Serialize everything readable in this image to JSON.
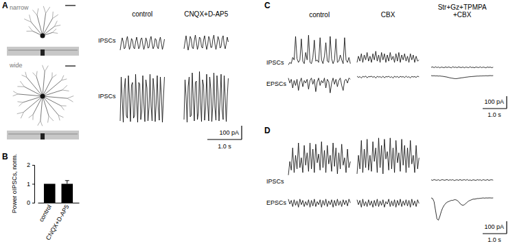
{
  "chart_data": [
    {
      "type": "line",
      "title": "A",
      "color": "#000000",
      "columns": [
        [
          "control"
        ],
        [
          "CNQX+D-AP5"
        ]
      ],
      "x": [
        0,
        0.03,
        0.06,
        0.09,
        0.12,
        0.15,
        0.18,
        0.21,
        0.24,
        0.27,
        0.3,
        0.33,
        0.36,
        0.39,
        0.42,
        0.45,
        0.48,
        0.51,
        0.54,
        0.57,
        0.6,
        0.63,
        0.66,
        0.69,
        0.72,
        0.75,
        0.78,
        0.81,
        0.84,
        0.87,
        0.9,
        0.93,
        0.96,
        0.99,
        1.02,
        1.05,
        1.08,
        1.11,
        1.14,
        1.17,
        1.2,
        1.23,
        1.26,
        1.29
      ],
      "rows": [
        {
          "cell": "narrow",
          "label": "IPSCs",
          "traces": [
            {
              "values": [
                10,
                60,
                100,
                70,
                20,
                30,
                80,
                110,
                60,
                15,
                40,
                95,
                80,
                30,
                20,
                70,
                105,
                65,
                20,
                35,
                90,
                100,
                50,
                15,
                45,
                100,
                75,
                25,
                30,
                85,
                110,
                60,
                20,
                40,
                95,
                85,
                35,
                20,
                75,
                105,
                60,
                15,
                45,
                90
              ]
            },
            {
              "values": [
                20,
                70,
                115,
                60,
                10,
                50,
                110,
                90,
                30,
                20,
                80,
                120,
                70,
                15,
                45,
                105,
                95,
                35,
                25,
                85,
                115,
                60,
                15,
                50,
                110,
                90,
                30,
                30,
                90,
                120,
                55,
                15,
                55,
                110,
                85,
                25,
                35,
                95,
                115,
                50,
                20,
                60,
                105,
                70
              ]
            }
          ]
        },
        {
          "cell": "wide",
          "label": "IPSCs",
          "traces": [
            {
              "values": [
                20,
                340,
                180,
                10,
                250,
                330,
                60,
                40,
                350,
                200,
                15,
                280,
                300,
                40,
                60,
                360,
                170,
                10,
                300,
                290,
                30,
                90,
                350,
                150,
                15,
                320,
                260,
                20,
                120,
                360,
                130,
                20,
                330,
                240,
                15,
                150,
                350,
                110,
                25,
                340,
                210,
                10,
                180,
                340
              ]
            },
            {
              "values": [
                30,
                320,
                200,
                10,
                270,
                340,
                50,
                60,
                370,
                180,
                20,
                300,
                310,
                30,
                80,
                380,
                160,
                15,
                320,
                280,
                25,
                110,
                360,
                140,
                20,
                340,
                250,
                15,
                140,
                370,
                120,
                25,
                350,
                230,
                20,
                170,
                360,
                100,
                30,
                350,
                190,
                15,
                200,
                330
              ]
            }
          ]
        }
      ],
      "scale_bar": {
        "x": 1.0,
        "x_label": "1.0 s",
        "y": 100,
        "y_label": "100 pA"
      }
    },
    {
      "type": "bar",
      "title": "B",
      "color": "#000000",
      "categories": [
        "control",
        "CNQX+D-AP5"
      ],
      "values": [
        1,
        1.0
      ],
      "errors": [
        null,
        0.17
      ],
      "y_label": "Power oIPSCs, norm.",
      "ylim": [
        0,
        2
      ],
      "yticks": [
        0,
        1,
        2
      ]
    },
    {
      "type": "line",
      "title": "C",
      "color": "#000000",
      "columns": [
        [
          "control"
        ],
        [
          "CBX"
        ],
        [
          "Str+Gz+TPMPA",
          "+CBX"
        ]
      ],
      "x": [
        0,
        0.06,
        0.12,
        0.18,
        0.24,
        0.3,
        0.36,
        0.42,
        0.48,
        0.54,
        0.6,
        0.66,
        0.72,
        0.78,
        0.84,
        0.9,
        0.96,
        1.02,
        1.08,
        1.14,
        1.2,
        1.26,
        1.32,
        1.38,
        1.44,
        1.5,
        1.56,
        1.62,
        1.68,
        1.74,
        1.8,
        1.86,
        1.92,
        1.98,
        2.04,
        2.1,
        2.16,
        2.22,
        2.28,
        2.34,
        2.4,
        2.46,
        2.52,
        2.58
      ],
      "rows": [
        {
          "label": "IPSCs",
          "traces": [
            {
              "values": [
                20,
                40,
                30,
                80,
                60,
                250,
                70,
                40,
                60,
                230,
                50,
                30,
                120,
                60,
                260,
                40,
                30,
                80,
                220,
                50,
                60,
                40,
                240,
                60,
                30,
                90,
                200,
                50,
                40,
                250,
                70,
                30,
                60,
                230,
                40,
                50,
                100,
                60,
                30,
                240,
                60,
                40,
                80,
                30
              ]
            },
            {
              "values": [
                40,
                90,
                50,
                110,
                40,
                100,
                60,
                120,
                50,
                90,
                40,
                110,
                60,
                130,
                50,
                100,
                40,
                120,
                60,
                110,
                40,
                100,
                50,
                120,
                60,
                90,
                40,
                110,
                50,
                120,
                40,
                100,
                60,
                110,
                50,
                90,
                40,
                110,
                60,
                100,
                40,
                90,
                50,
                60
              ]
            },
            {
              "values": [
                0,
                4,
                -3,
                5,
                -2,
                3,
                -4,
                2,
                0,
                -3,
                4,
                -2,
                3,
                0,
                -4,
                5,
                -1,
                2,
                -3,
                4,
                0,
                -2,
                3,
                -4,
                2,
                0,
                -3,
                5,
                -2,
                1,
                -4,
                3,
                0,
                -2,
                4,
                -3,
                2,
                0,
                -4,
                3,
                -1,
                2,
                -3,
                1
              ]
            }
          ]
        },
        {
          "label": "EPSCs",
          "traces": [
            {
              "values": [
                -20,
                -60,
                -30,
                -100,
                -40,
                -80,
                -30,
                -120,
                -50,
                -20,
                -90,
                -40,
                -60,
                -30,
                -110,
                -40,
                -20,
                -70,
                -30,
                -130,
                -50,
                -20,
                -80,
                -40,
                -60,
                -20,
                -100,
                -30,
                -50,
                -140,
                -60,
                -20,
                -70,
                -30,
                -90,
                -40,
                -20,
                -80,
                -120,
                -40,
                -30,
                -60,
                -20,
                -30
              ]
            },
            {
              "values": [
                -5,
                -15,
                -8,
                -20,
                -6,
                -12,
                -4,
                -18,
                -8,
                -10,
                -5,
                -14,
                -7,
                -20,
                -6,
                -12,
                -9,
                -16,
                -5,
                -18,
                -8,
                -11,
                -6,
                -15,
                -9,
                -20,
                -5,
                -13,
                -7,
                -17,
                -6,
                -12,
                -8,
                -16,
                -5,
                -14,
                -9,
                -19,
                -6,
                -12,
                -8,
                -15,
                -5,
                -10
              ]
            },
            {
              "values": [
                0,
                -2,
                -1,
                -3,
                -2,
                -4,
                -3,
                -5,
                -6,
                -8,
                -10,
                -12,
                -15,
                -18,
                -20,
                -22,
                -24,
                -25,
                -24,
                -22,
                -20,
                -18,
                -17,
                -15,
                -13,
                -12,
                -10,
                -9,
                -8,
                -7,
                -6,
                -5,
                -4,
                -4,
                -3,
                -3,
                -2,
                -2,
                -1,
                -2,
                -1,
                0,
                -1,
                0
              ]
            }
          ]
        }
      ],
      "scale_bar": {
        "x": 1.0,
        "x_label": "1.0 s",
        "y": 100,
        "y_label": "100 pA"
      }
    },
    {
      "type": "line",
      "title": "D",
      "color": "#000000",
      "x": [
        0,
        0.06,
        0.12,
        0.18,
        0.24,
        0.3,
        0.36,
        0.42,
        0.48,
        0.54,
        0.6,
        0.66,
        0.72,
        0.78,
        0.84,
        0.9,
        0.96,
        1.02,
        1.08,
        1.14,
        1.2,
        1.26,
        1.32,
        1.38,
        1.44,
        1.5,
        1.56,
        1.62,
        1.68,
        1.74,
        1.8,
        1.86,
        1.92,
        1.98,
        2.04,
        2.1,
        2.16,
        2.22,
        2.28,
        2.34,
        2.4,
        2.46,
        2.52,
        2.58
      ],
      "rows": [
        {
          "label": "IPSCs",
          "traces": [
            {
              "values": [
                40,
                150,
                80,
                260,
                60,
                200,
                90,
                300,
                100,
                180,
                60,
                280,
                120,
                220,
                70,
                300,
                90,
                250,
                60,
                290,
                140,
                210,
                80,
                310,
                100,
                240,
                60,
                280,
                130,
                200,
                70,
                300,
                110,
                260,
                50,
                220,
                90,
                290,
                120,
                180,
                60,
                250,
                100,
                150
              ]
            },
            {
              "values": [
                50,
                200,
                90,
                320,
                60,
                250,
                100,
                330,
                80,
                200,
                70,
                310,
                150,
                260,
                60,
                340,
                100,
                280,
                50,
                330,
                170,
                230,
                80,
                340,
                90,
                260,
                60,
                320,
                140,
                220,
                70,
                330,
                120,
                280,
                60,
                260,
                100,
                320,
                130,
                200,
                60,
                280,
                90,
                180
              ]
            },
            {
              "values": [
                2,
                -3,
                4,
                0,
                -2,
                3,
                -4,
                1,
                3,
                -2,
                0,
                4,
                -3,
                2,
                -1,
                3,
                -4,
                0,
                2,
                -3,
                4,
                -2,
                0,
                3,
                -2,
                4,
                -3,
                1,
                -4,
                2,
                0,
                -3,
                3,
                -1,
                2,
                -4,
                3,
                0,
                -2,
                4,
                -3,
                1,
                2,
                -1
              ]
            }
          ]
        },
        {
          "label": "EPSCs",
          "traces": [
            {
              "values": [
                -10,
                -50,
                -20,
                -70,
                -15,
                -60,
                -25,
                -75,
                -10,
                -55,
                -20,
                -70,
                -30,
                -60,
                -15,
                -75,
                -20,
                -65,
                -10,
                -70,
                -30,
                -55,
                -15,
                -75,
                -20,
                -60,
                -10,
                -70,
                -25,
                -55,
                -15,
                -75,
                -20,
                -65,
                -10,
                -60,
                -25,
                -70,
                -15,
                -55,
                -20,
                -65,
                -10,
                -40
              ]
            },
            {
              "values": [
                -15,
                -55,
                -20,
                -75,
                -10,
                -65,
                -30,
                -70,
                -15,
                -60,
                -25,
                -75,
                -20,
                -65,
                -10,
                -70,
                -25,
                -60,
                -15,
                -75,
                -30,
                -50,
                -10,
                -70,
                -25,
                -65,
                -15,
                -75,
                -20,
                -60,
                -10,
                -70,
                -25,
                -60,
                -15,
                -65,
                -20,
                -75,
                -10,
                -60,
                -25,
                -70,
                -15,
                -45
              ]
            },
            {
              "values": [
                0,
                -5,
                -30,
                -100,
                -170,
                -180,
                -150,
                -110,
                -80,
                -60,
                -45,
                -35,
                -30,
                -25,
                -20,
                -20,
                -15,
                -15,
                -20,
                -30,
                -45,
                -55,
                -60,
                -55,
                -45,
                -35,
                -25,
                -20,
                -15,
                -10,
                -10,
                -8,
                -5,
                -5,
                -3,
                -2,
                0,
                -2,
                0,
                -1,
                0,
                0,
                -1,
                0
              ]
            }
          ]
        }
      ],
      "scale_bar": {
        "x": 1.0,
        "x_label": "1.0 s",
        "y": 100,
        "y_label": "100 pA"
      }
    }
  ]
}
